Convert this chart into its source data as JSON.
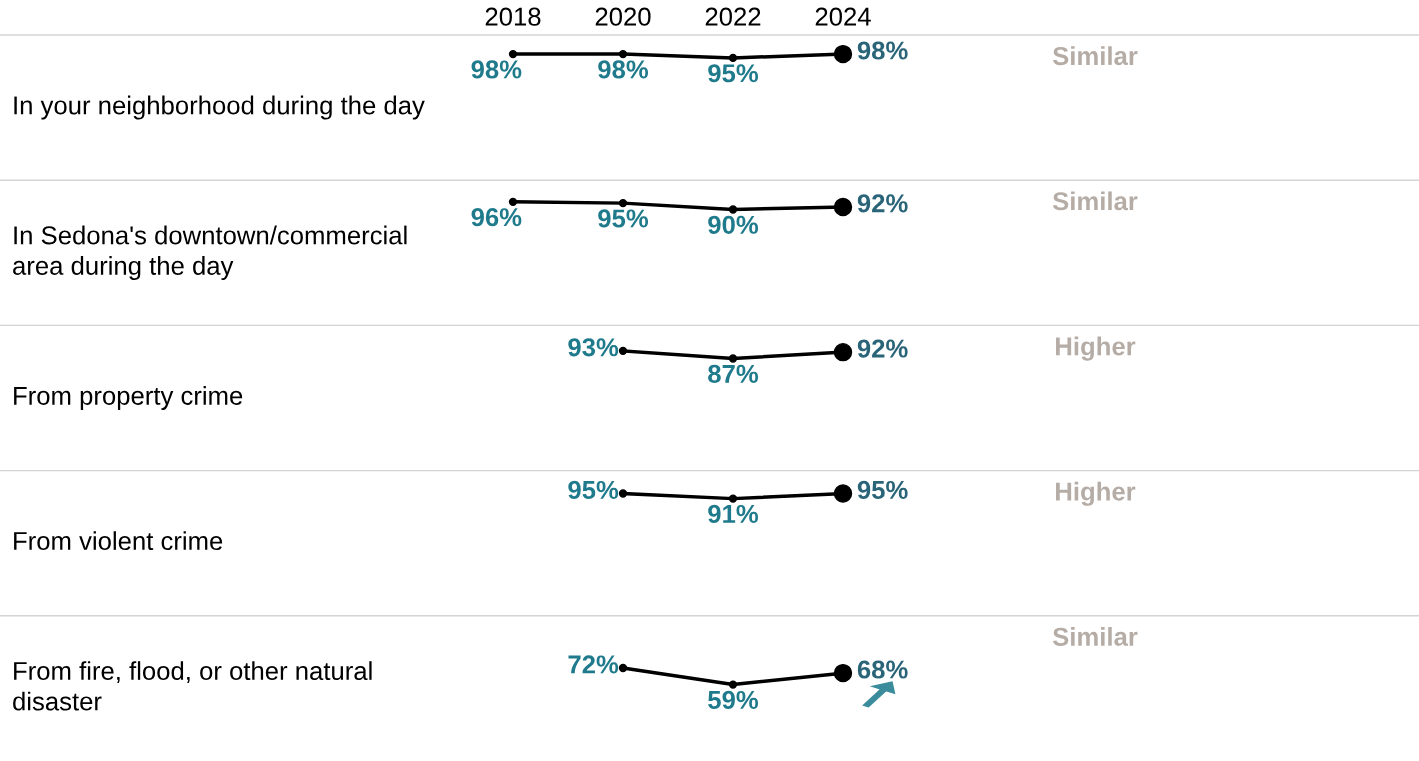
{
  "chart_data": [
    {
      "type": "line",
      "ylabel": "In your neighborhood during the day",
      "categories": [
        "2018",
        "2020",
        "2022",
        "2024"
      ],
      "series": [
        {
          "color": "#000000",
          "values": [
            98,
            98,
            95,
            98
          ],
          "value_labels": [
            "98%",
            "98%",
            "95%",
            "98%"
          ]
        }
      ],
      "marker": "circle",
      "tick_labels": "x",
      "grid": false,
      "annotations": [
        "Similar"
      ]
    },
    {
      "type": "line",
      "ylabel": "In Sedona's downtown/commercial area during the day",
      "categories": [
        "2018",
        "2020",
        "2022",
        "2024"
      ],
      "series": [
        {
          "color": "#000000",
          "values": [
            96,
            95,
            90,
            92
          ],
          "value_labels": [
            "96%",
            "95%",
            "90%",
            "92%"
          ]
        }
      ],
      "marker": "circle",
      "tick_labels": false,
      "grid": false,
      "annotations": [
        "Similar"
      ]
    },
    {
      "type": "line",
      "ylabel": "From property crime",
      "categories": [
        "2018",
        "2020",
        "2022",
        "2024"
      ],
      "series": [
        {
          "color": "#000000",
          "values": [
            null,
            93,
            87,
            92
          ],
          "value_labels": [
            null,
            "93%",
            "87%",
            "92%"
          ]
        }
      ],
      "marker": "circle",
      "tick_labels": false,
      "grid": false,
      "annotations": [
        "Higher"
      ]
    },
    {
      "type": "line",
      "ylabel": "From violent crime",
      "categories": [
        "2018",
        "2020",
        "2022",
        "2024"
      ],
      "series": [
        {
          "color": "#000000",
          "values": [
            null,
            95,
            91,
            95
          ],
          "value_labels": [
            null,
            "95%",
            "91%",
            "95%"
          ]
        }
      ],
      "marker": "circle",
      "tick_labels": false,
      "grid": false,
      "annotations": [
        "Higher"
      ]
    },
    {
      "type": "line",
      "ylabel": "From fire, flood, or other natural disaster",
      "categories": [
        "2018",
        "2020",
        "2022",
        "2024"
      ],
      "series": [
        {
          "color": "#000000",
          "values": [
            null,
            72,
            59,
            68
          ],
          "value_labels": [
            null,
            "72%",
            "59%",
            "68%"
          ]
        }
      ],
      "marker": "circle",
      "tick_labels": false,
      "grid": false,
      "annotations": [
        "Similar"
      ]
    }
  ]
}
